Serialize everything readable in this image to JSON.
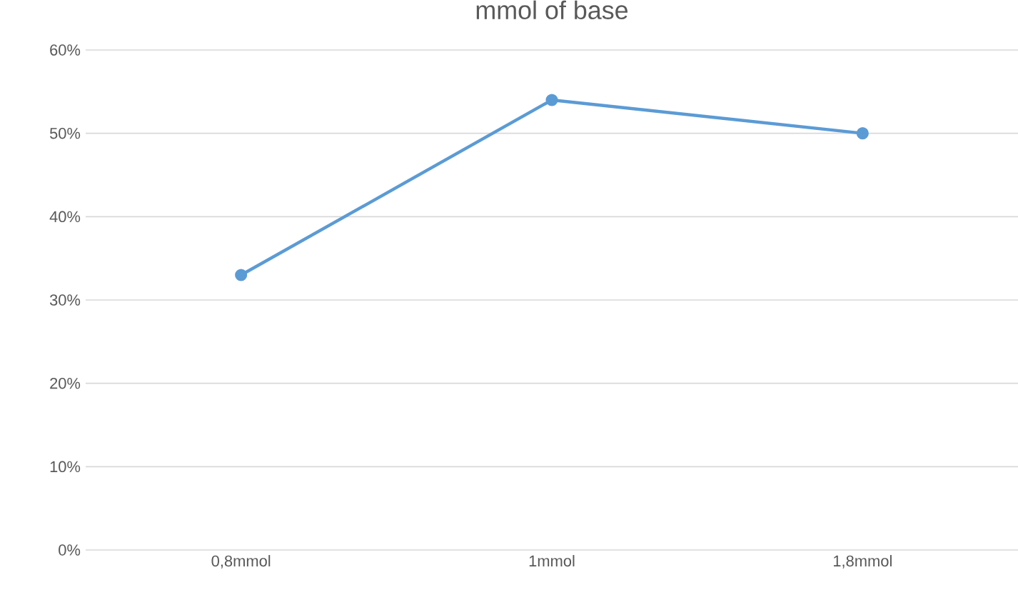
{
  "chart_data": {
    "type": "line",
    "title": "mmol of base",
    "categories": [
      "0,8mmol",
      "1mmol",
      "1,8mmol"
    ],
    "series": [
      {
        "color": "#5b9bd5",
        "values": [
          33,
          54,
          50
        ]
      }
    ],
    "ylim": [
      0,
      60
    ],
    "yticks": [
      {
        "value": 0,
        "label": "0%"
      },
      {
        "value": 10,
        "label": "10%"
      },
      {
        "value": 20,
        "label": "20%"
      },
      {
        "value": 30,
        "label": "30%"
      },
      {
        "value": 40,
        "label": "40%"
      },
      {
        "value": 50,
        "label": "50%"
      },
      {
        "value": 60,
        "label": "60%"
      }
    ],
    "grid": "y",
    "marker": "circle",
    "line_style": "solid"
  }
}
